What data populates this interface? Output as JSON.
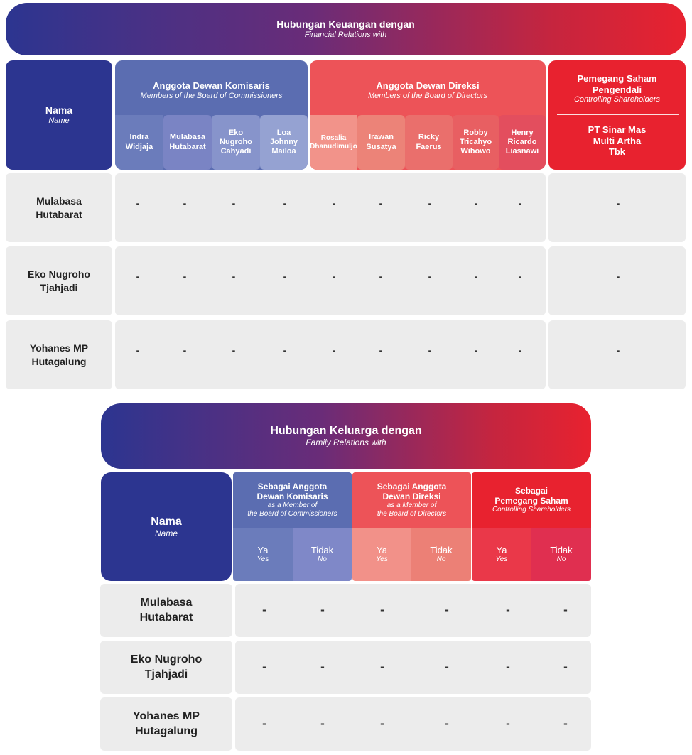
{
  "financial": {
    "title": "Hubungan Keuangan dengan",
    "subtitle": "Financial Relations with",
    "name_header": {
      "label": "Nama",
      "sub": "Name"
    },
    "commissioners": {
      "title": "Anggota Dewan Komisaris",
      "subtitle": "Members of the Board of Commissioners",
      "members": [
        "Indra\nWidjaja",
        "Mulabasa\nHutabarat",
        "Eko\nNugroho\nCahyadi",
        "Loa\nJohnny\nMailoa"
      ]
    },
    "directors": {
      "title": "Anggota Dewan Direksi",
      "subtitle": "Members of the Board of Directors",
      "members": [
        "Rosalia\nDhanudimuljo",
        "Irawan\nSusatya",
        "Ricky\nFaerus",
        "Robby\nTricahyo\nWibowo",
        "Henry\nRicardo\nLiasnawi"
      ]
    },
    "shareholders": {
      "title": "Pemegang Saham\nPengendali",
      "subtitle": "Controlling Shareholders",
      "member": "PT Sinar Mas\nMulti Artha\nTbk"
    },
    "rows": [
      {
        "name": "Mulabasa\nHutabarat",
        "values": [
          "-",
          "-",
          "-",
          "-",
          "-",
          "-",
          "-",
          "-",
          "-",
          "-"
        ]
      },
      {
        "name": "Eko Nugroho\nTjahjadi",
        "values": [
          "-",
          "-",
          "-",
          "-",
          "-",
          "-",
          "-",
          "-",
          "-",
          "-"
        ]
      },
      {
        "name": "Yohanes MP\nHutagalung",
        "values": [
          "-",
          "-",
          "-",
          "-",
          "-",
          "-",
          "-",
          "-",
          "-",
          "-"
        ]
      }
    ]
  },
  "family": {
    "title": "Hubungan Keluarga dengan",
    "subtitle": "Family Relations with",
    "name_header": {
      "label": "Nama",
      "sub": "Name"
    },
    "groups": [
      {
        "title": "Sebagai Anggota\nDewan Komisaris",
        "subtitle": "as a Member of\nthe Board of Commissioners"
      },
      {
        "title": "Sebagai Anggota\nDewan Direksi",
        "subtitle": "as a Member of\nthe Board of Directors"
      },
      {
        "title": "Sebagai\nPemegang Saham",
        "subtitle": "Controlling Shareholders"
      }
    ],
    "yes": {
      "label": "Ya",
      "sub": "Yes"
    },
    "no": {
      "label": "Tidak",
      "sub": "No"
    },
    "rows": [
      {
        "name": "Mulabasa\nHutabarat",
        "values": [
          "-",
          "-",
          "-",
          "-",
          "-",
          "-"
        ]
      },
      {
        "name": "Eko Nugroho\nTjahjadi",
        "values": [
          "-",
          "-",
          "-",
          "-",
          "-",
          "-"
        ]
      },
      {
        "name": "Yohanes MP\nHutagalung",
        "values": [
          "-",
          "-",
          "-",
          "-",
          "-",
          "-"
        ]
      }
    ]
  },
  "colors": {
    "navy": "#2c3590",
    "commissioners": "#5b6db1",
    "directors": "#ed5358",
    "shareholders": "#e8222f",
    "row_bg": "#ececec"
  }
}
